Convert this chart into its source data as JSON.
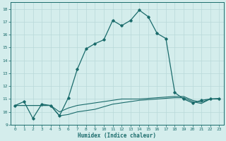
{
  "xlabel": "Humidex (Indice chaleur)",
  "bg_color": "#d4edec",
  "line_color": "#1a6b6b",
  "grid_color": "#b8d8d8",
  "xlim": [
    -0.5,
    23.5
  ],
  "ylim": [
    9.0,
    18.5
  ],
  "xticks": [
    0,
    1,
    2,
    3,
    4,
    5,
    6,
    7,
    8,
    9,
    10,
    11,
    12,
    13,
    14,
    15,
    16,
    17,
    18,
    19,
    20,
    21,
    22,
    23
  ],
  "yticks": [
    9,
    10,
    11,
    12,
    13,
    14,
    15,
    16,
    17,
    18
  ],
  "line1_x": [
    0,
    1,
    2,
    3,
    4,
    5,
    6,
    7,
    8,
    9,
    10,
    11,
    12,
    13,
    14,
    15,
    16,
    17,
    18,
    19,
    20,
    21,
    22,
    23
  ],
  "line1_y": [
    10.5,
    10.8,
    9.5,
    10.6,
    10.5,
    9.7,
    11.1,
    13.3,
    14.9,
    15.3,
    15.6,
    17.1,
    16.7,
    17.1,
    17.9,
    17.4,
    16.1,
    15.7,
    11.5,
    11.0,
    10.7,
    10.9,
    11.0,
    11.0
  ],
  "line2_x": [
    0,
    2,
    3,
    4,
    5,
    6,
    7,
    8,
    9,
    10,
    11,
    12,
    13,
    14,
    15,
    16,
    17,
    18,
    19,
    20,
    21,
    22,
    23
  ],
  "line2_y": [
    10.5,
    10.5,
    10.5,
    10.5,
    10.0,
    10.3,
    10.5,
    10.6,
    10.7,
    10.8,
    10.9,
    11.0,
    11.0,
    11.0,
    11.05,
    11.1,
    11.15,
    11.2,
    11.2,
    10.9,
    10.75,
    11.0,
    11.05
  ],
  "line3_x": [
    0,
    2,
    3,
    4,
    5,
    6,
    7,
    8,
    9,
    10,
    11,
    12,
    13,
    14,
    15,
    16,
    17,
    18,
    19,
    20,
    21,
    22,
    23
  ],
  "line3_y": [
    10.5,
    10.5,
    10.5,
    10.5,
    9.7,
    9.8,
    10.0,
    10.1,
    10.2,
    10.4,
    10.6,
    10.7,
    10.8,
    10.9,
    10.95,
    11.0,
    11.05,
    11.1,
    11.1,
    10.8,
    10.65,
    11.0,
    11.0
  ]
}
